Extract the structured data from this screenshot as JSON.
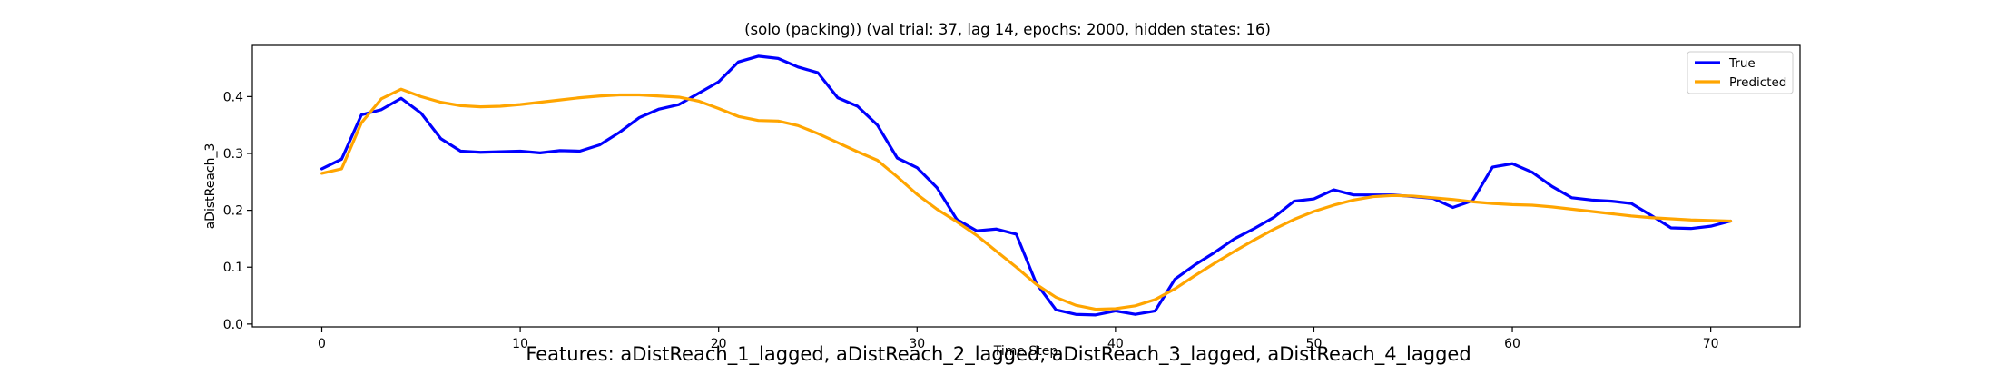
{
  "features_text": "Features: aDistReach_1_lagged, aDistReach_2_lagged, aDistReach_3_lagged, aDistReach_4_lagged",
  "chart_data": {
    "type": "line",
    "title": "(solo (packing)) (val trial: 37, lag 14, epochs: 2000, hidden states: 16)",
    "xlabel": "Time Step",
    "ylabel": "aDistReach_3",
    "xlim": [
      -3.5,
      74.5
    ],
    "ylim": [
      -0.005,
      0.49
    ],
    "xticks": [
      0,
      10,
      20,
      30,
      40,
      50,
      60,
      70
    ],
    "yticks": [
      0.0,
      0.1,
      0.2,
      0.3,
      0.4
    ],
    "xtick_labels": [
      "0",
      "10",
      "20",
      "30",
      "40",
      "50",
      "60",
      "70"
    ],
    "ytick_labels": [
      "0.0",
      "0.1",
      "0.2",
      "0.3",
      "0.4"
    ],
    "grid": false,
    "legend": "top-right",
    "series": [
      {
        "name": "True",
        "color": "#0000ff",
        "values": [
          0.273,
          0.29,
          0.368,
          0.377,
          0.397,
          0.371,
          0.326,
          0.304,
          0.302,
          0.303,
          0.304,
          0.301,
          0.305,
          0.304,
          0.315,
          0.337,
          0.363,
          0.378,
          0.386,
          0.406,
          0.426,
          0.461,
          0.471,
          0.467,
          0.452,
          0.442,
          0.398,
          0.383,
          0.35,
          0.292,
          0.275,
          0.24,
          0.184,
          0.164,
          0.167,
          0.158,
          0.072,
          0.025,
          0.017,
          0.016,
          0.023,
          0.017,
          0.023,
          0.079,
          0.104,
          0.126,
          0.15,
          0.168,
          0.188,
          0.216,
          0.22,
          0.236,
          0.227,
          0.227,
          0.227,
          0.224,
          0.221,
          0.205,
          0.217,
          0.276,
          0.282,
          0.267,
          0.242,
          0.222,
          0.218,
          0.216,
          0.212,
          0.191,
          0.169,
          0.168,
          0.172,
          0.181
        ]
      },
      {
        "name": "Predicted",
        "color": "#ffa500",
        "values": [
          0.265,
          0.273,
          0.354,
          0.396,
          0.413,
          0.4,
          0.39,
          0.384,
          0.382,
          0.383,
          0.386,
          0.39,
          0.394,
          0.398,
          0.401,
          0.403,
          0.403,
          0.401,
          0.399,
          0.392,
          0.379,
          0.365,
          0.358,
          0.357,
          0.349,
          0.335,
          0.319,
          0.303,
          0.288,
          0.259,
          0.228,
          0.202,
          0.18,
          0.156,
          0.128,
          0.1,
          0.07,
          0.047,
          0.033,
          0.026,
          0.027,
          0.032,
          0.043,
          0.062,
          0.085,
          0.107,
          0.128,
          0.148,
          0.167,
          0.184,
          0.198,
          0.209,
          0.218,
          0.224,
          0.226,
          0.225,
          0.222,
          0.219,
          0.215,
          0.212,
          0.21,
          0.209,
          0.206,
          0.202,
          0.198,
          0.194,
          0.19,
          0.187,
          0.185,
          0.183,
          0.182,
          0.181
        ]
      }
    ]
  }
}
